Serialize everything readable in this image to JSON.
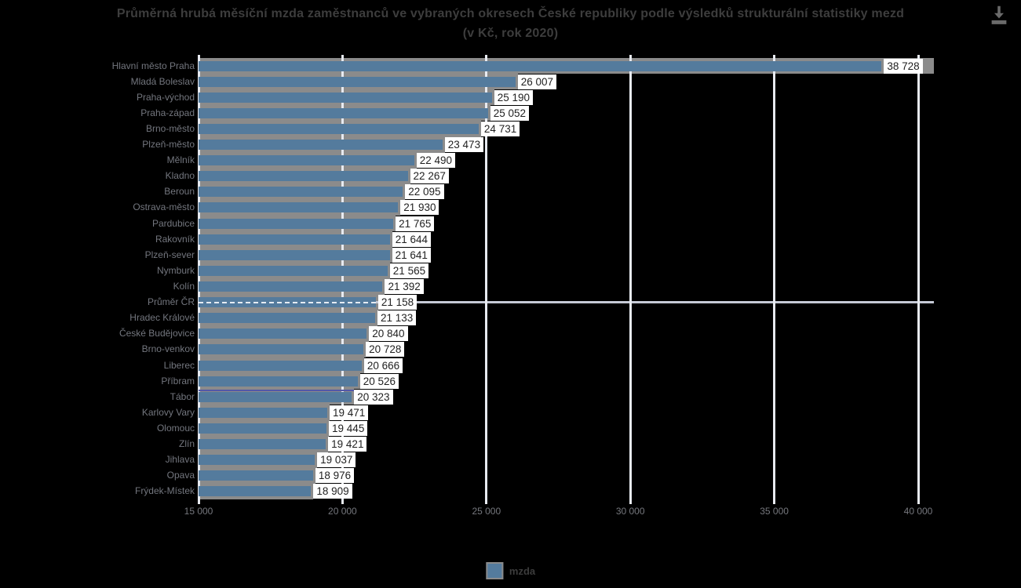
{
  "header": {
    "title_line1": "Průměrná hrubá měsíční mzda zaměstnanců ve vybraných okresech České republiky podle výsledků strukturální statistiky mezd",
    "title_line2": "(v Kč, rok 2020)"
  },
  "chart_data": {
    "type": "bar",
    "orientation": "horizontal",
    "title": "Průměrná hrubá měsíční mzda zaměstnanců ve vybraných okresech České republiky podle výsledků strukturální statistiky mezd (v Kč, rok 2020)",
    "x_axis": {
      "min": 15000,
      "max": 40000,
      "tick_step": 5000,
      "ticks": [
        15000,
        20000,
        25000,
        30000,
        35000,
        40000
      ],
      "tick_labels": [
        "15 000",
        "20 000",
        "25 000",
        "30 000",
        "35 000",
        "40 000"
      ],
      "grid": true
    },
    "rows": [
      {
        "label": "Hlavní město Praha",
        "value": 38728,
        "value_label": "38 728",
        "style": "highlight-track"
      },
      {
        "label": "Mladá Boleslav",
        "value": 26007,
        "value_label": "26 007"
      },
      {
        "label": "Praha-východ",
        "value": 25190,
        "value_label": "25 190"
      },
      {
        "label": "Praha-západ",
        "value": 25052,
        "value_label": "25 052"
      },
      {
        "label": "Brno-město",
        "value": 24731,
        "value_label": "24 731"
      },
      {
        "label": "Plzeň-město",
        "value": 23473,
        "value_label": "23 473"
      },
      {
        "label": "Mělník",
        "value": 22490,
        "value_label": "22 490"
      },
      {
        "label": "Kladno",
        "value": 22267,
        "value_label": "22 267"
      },
      {
        "label": "Beroun",
        "value": 22095,
        "value_label": "22 095"
      },
      {
        "label": "Ostrava-město",
        "value": 21930,
        "value_label": "21 930"
      },
      {
        "label": "Pardubice",
        "value": 21765,
        "value_label": "21 765"
      },
      {
        "label": "Rakovník",
        "value": 21644,
        "value_label": "21 644"
      },
      {
        "label": "Plzeň-sever",
        "value": 21641,
        "value_label": "21 641"
      },
      {
        "label": "Nymburk",
        "value": 21565,
        "value_label": "21 565"
      },
      {
        "label": "Kolín",
        "value": 21392,
        "value_label": "21 392"
      },
      {
        "label": "Průměr ČR",
        "value": 21158,
        "value_label": "21 158",
        "style": "average-dashed"
      },
      {
        "label": "Hradec Králové",
        "value": 21133,
        "value_label": "21 133"
      },
      {
        "label": "České Budějovice",
        "value": 20840,
        "value_label": "20 840"
      },
      {
        "label": "Brno-venkov",
        "value": 20728,
        "value_label": "20 728"
      },
      {
        "label": "Liberec",
        "value": 20666,
        "value_label": "20 666"
      },
      {
        "label": "Příbram",
        "value": 20526,
        "value_label": "20 526"
      },
      {
        "label": "Tábor",
        "value": 20323,
        "value_label": "20 323",
        "style": "marker-purple"
      },
      {
        "label": "Karlovy Vary",
        "value": 19471,
        "value_label": "19 471"
      },
      {
        "label": "Olomouc",
        "value": 19445,
        "value_label": "19 445"
      },
      {
        "label": "Zlín",
        "value": 19421,
        "value_label": "19 421"
      },
      {
        "label": "Jihlava",
        "value": 19037,
        "value_label": "19 037"
      },
      {
        "label": "Opava",
        "value": 18976,
        "value_label": "18 976"
      },
      {
        "label": "Frýdek-Místek",
        "value": 18909,
        "value_label": "18 909"
      }
    ],
    "legend": {
      "label": "mzda",
      "position": "bottom-center"
    },
    "colors": {
      "bar": "#547b9d",
      "bar_track": "#8b8b8b",
      "gridline": "#e7eaf0",
      "value_chip_bg": "#ffffff",
      "value_chip_text": "#1f1f1f",
      "category_label": "#73767e",
      "tick_label": "#75777d",
      "average_line_dash": "#e6ecf4",
      "average_line_solid": "#c6cad6",
      "marker_line": "#5358a8",
      "title_text": "#3d3d3d",
      "background": "#000000"
    }
  }
}
